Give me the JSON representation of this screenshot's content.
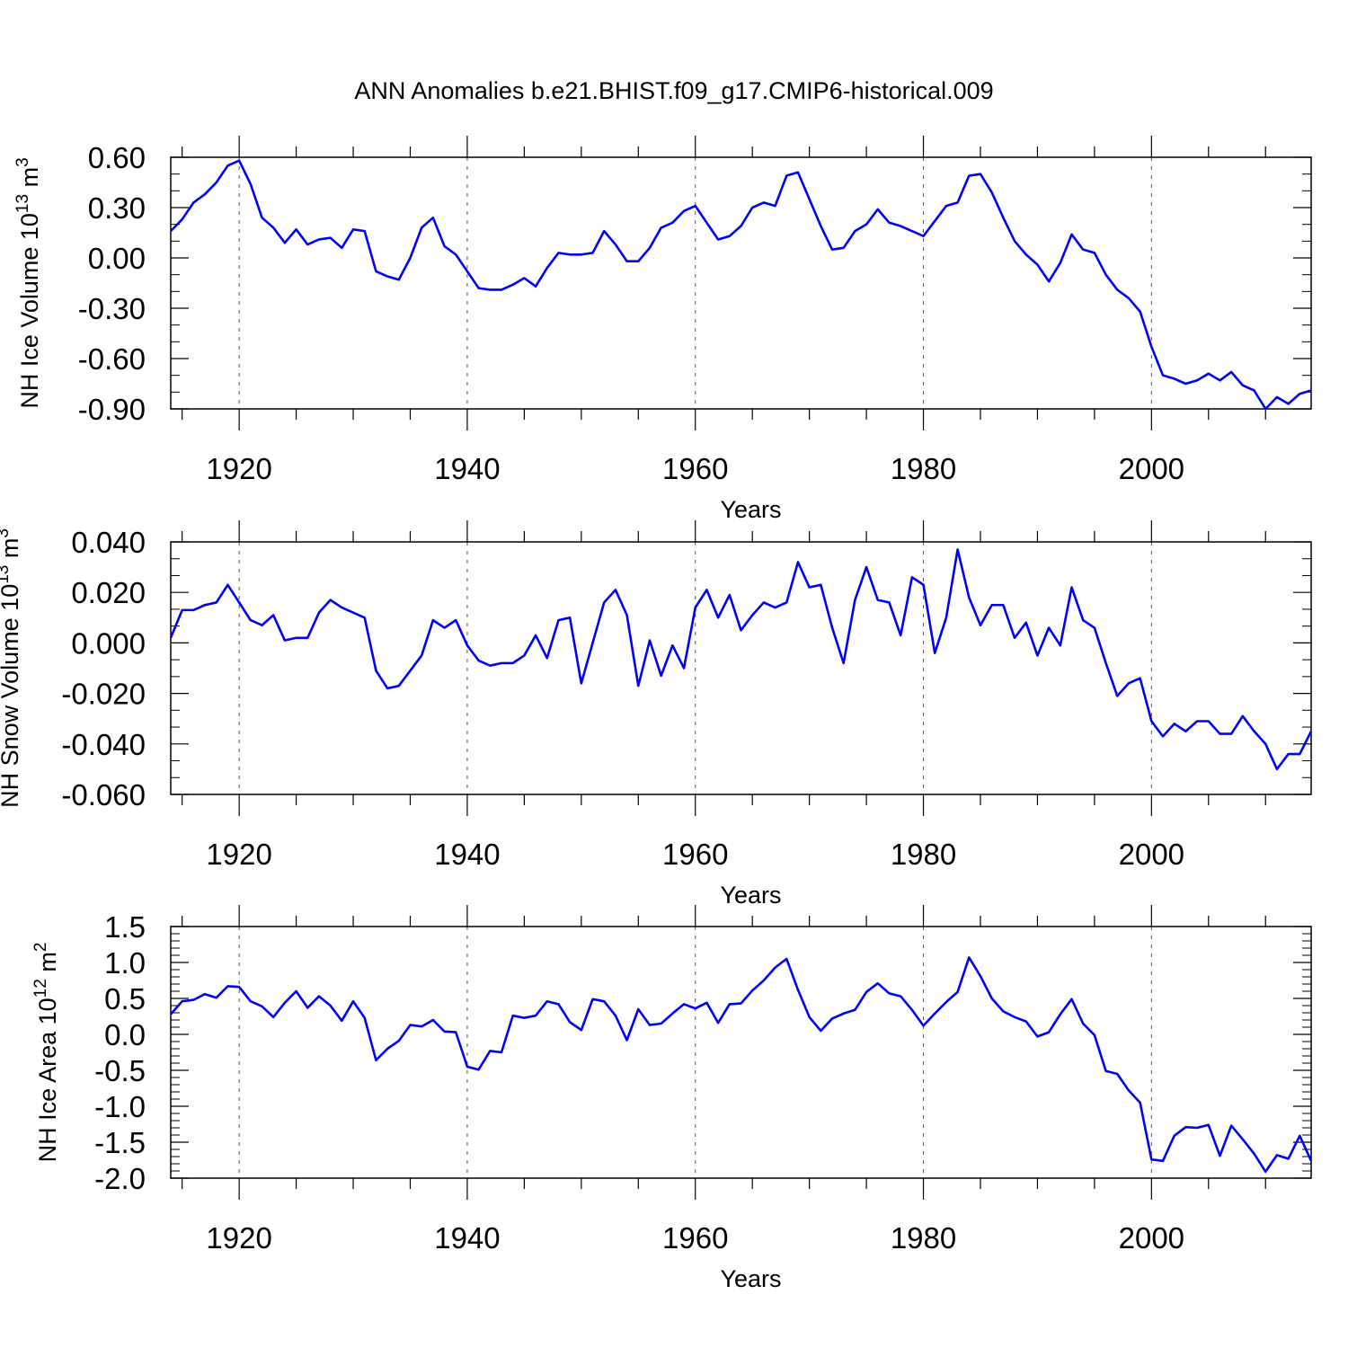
{
  "title": "ANN Anomalies b.e21.BHIST.f09_g17.CMIP6-historical.009",
  "colors": {
    "line": "#0000ff",
    "axis": "#000000",
    "grid": "#555555",
    "background": "#ffffff"
  },
  "chart_data": [
    {
      "type": "line",
      "ylabel_main": "NH Ice Volume 10",
      "ylabel_exp": "13",
      "ylabel_unit": " m",
      "ylabel_unit_exp": "3",
      "xlabel": "Years",
      "xlim": [
        1914,
        2014
      ],
      "ylim": [
        -0.9,
        0.6
      ],
      "yticks": [
        0.6,
        0.3,
        0.0,
        -0.3,
        -0.6,
        -0.9
      ],
      "ytick_labels": [
        "0.60",
        "0.30",
        "0.00",
        "-0.30",
        "-0.60",
        "-0.90"
      ],
      "xticks": [
        1920,
        1940,
        1960,
        1980,
        2000
      ],
      "xtick_labels": [
        "1920",
        "1940",
        "1960",
        "1980",
        "2000"
      ],
      "series": [
        {
          "name": "NH Ice Volume",
          "x_start": 1914,
          "values": [
            0.16,
            0.23,
            0.33,
            0.38,
            0.45,
            0.55,
            0.58,
            0.44,
            0.24,
            0.18,
            0.09,
            0.17,
            0.08,
            0.11,
            0.12,
            0.06,
            0.17,
            0.16,
            -0.08,
            -0.11,
            -0.13,
            0.0,
            0.18,
            0.24,
            0.07,
            0.02,
            -0.08,
            -0.18,
            -0.19,
            -0.19,
            -0.16,
            -0.12,
            -0.17,
            -0.06,
            0.03,
            0.02,
            0.02,
            0.03,
            0.16,
            0.08,
            -0.02,
            -0.02,
            0.06,
            0.18,
            0.21,
            0.28,
            0.31,
            0.21,
            0.11,
            0.13,
            0.19,
            0.3,
            0.33,
            0.31,
            0.49,
            0.51,
            0.35,
            0.19,
            0.05,
            0.06,
            0.16,
            0.2,
            0.29,
            0.21,
            0.19,
            0.16,
            0.13,
            0.22,
            0.31,
            0.33,
            0.49,
            0.5,
            0.39,
            0.24,
            0.1,
            0.02,
            -0.04,
            -0.14,
            -0.03,
            0.14,
            0.05,
            0.03,
            -0.1,
            -0.19,
            -0.24,
            -0.32,
            -0.53,
            -0.7,
            -0.72,
            -0.75,
            -0.73,
            -0.69,
            -0.73,
            -0.68,
            -0.76,
            -0.79,
            -0.9,
            -0.83,
            -0.87,
            -0.81,
            -0.79
          ]
        }
      ]
    },
    {
      "type": "line",
      "ylabel_main": "NH Snow Volume 10",
      "ylabel_exp": "13",
      "ylabel_unit": " m",
      "ylabel_unit_exp": "3",
      "xlabel": "Years",
      "xlim": [
        1914,
        2014
      ],
      "ylim": [
        -0.06,
        0.04
      ],
      "yticks": [
        0.04,
        0.02,
        0.0,
        -0.02,
        -0.04,
        -0.06
      ],
      "ytick_labels": [
        "0.040",
        "0.020",
        "0.000",
        "-0.020",
        "-0.040",
        "-0.060"
      ],
      "xticks": [
        1920,
        1940,
        1960,
        1980,
        2000
      ],
      "xtick_labels": [
        "1920",
        "1940",
        "1960",
        "1980",
        "2000"
      ],
      "series": [
        {
          "name": "NH Snow Volume",
          "x_start": 1914,
          "values": [
            0.002,
            0.013,
            0.013,
            0.015,
            0.016,
            0.023,
            0.016,
            0.009,
            0.007,
            0.011,
            0.001,
            0.002,
            0.002,
            0.012,
            0.017,
            0.014,
            0.012,
            0.01,
            -0.011,
            -0.018,
            -0.017,
            -0.011,
            -0.005,
            0.009,
            0.006,
            0.009,
            -0.001,
            -0.007,
            -0.009,
            -0.008,
            -0.008,
            -0.005,
            0.003,
            -0.006,
            0.009,
            0.01,
            -0.016,
            0.0,
            0.016,
            0.021,
            0.011,
            -0.017,
            0.001,
            -0.013,
            -0.001,
            -0.01,
            0.014,
            0.021,
            0.01,
            0.019,
            0.005,
            0.011,
            0.016,
            0.014,
            0.016,
            0.032,
            0.022,
            0.023,
            0.006,
            -0.008,
            0.017,
            0.03,
            0.017,
            0.016,
            0.003,
            0.026,
            0.023,
            -0.004,
            0.01,
            0.037,
            0.018,
            0.007,
            0.015,
            0.015,
            0.002,
            0.008,
            -0.005,
            0.006,
            -0.001,
            0.022,
            0.009,
            0.006,
            -0.008,
            -0.021,
            -0.016,
            -0.014,
            -0.031,
            -0.037,
            -0.032,
            -0.035,
            -0.031,
            -0.031,
            -0.036,
            -0.036,
            -0.029,
            -0.035,
            -0.04,
            -0.05,
            -0.044,
            -0.044,
            -0.035
          ]
        }
      ]
    },
    {
      "type": "line",
      "ylabel_main": "NH Ice Area 10",
      "ylabel_exp": "12",
      "ylabel_unit": " m",
      "ylabel_unit_exp": "2",
      "xlabel": "Years",
      "xlim": [
        1914,
        2014
      ],
      "ylim": [
        -2.0,
        1.5
      ],
      "yticks": [
        1.5,
        1.0,
        0.5,
        0.0,
        -0.5,
        -1.0,
        -1.5,
        -2.0
      ],
      "ytick_labels": [
        "1.5",
        "1.0",
        "0.5",
        "0.0",
        "-0.5",
        "-1.0",
        "-1.5",
        "-2.0"
      ],
      "xticks": [
        1920,
        1940,
        1960,
        1980,
        2000
      ],
      "xtick_labels": [
        "1920",
        "1940",
        "1960",
        "1980",
        "2000"
      ],
      "series": [
        {
          "name": "NH Ice Area",
          "x_start": 1914,
          "values": [
            0.28,
            0.46,
            0.48,
            0.56,
            0.51,
            0.67,
            0.66,
            0.46,
            0.39,
            0.24,
            0.44,
            0.6,
            0.37,
            0.53,
            0.4,
            0.19,
            0.46,
            0.23,
            -0.36,
            -0.2,
            -0.09,
            0.13,
            0.11,
            0.2,
            0.04,
            0.03,
            -0.45,
            -0.49,
            -0.23,
            -0.25,
            0.26,
            0.23,
            0.26,
            0.46,
            0.42,
            0.17,
            0.06,
            0.49,
            0.46,
            0.26,
            -0.08,
            0.35,
            0.13,
            0.15,
            0.29,
            0.42,
            0.36,
            0.44,
            0.16,
            0.42,
            0.43,
            0.61,
            0.75,
            0.93,
            1.05,
            0.62,
            0.24,
            0.05,
            0.22,
            0.29,
            0.34,
            0.59,
            0.71,
            0.57,
            0.53,
            0.34,
            0.12,
            0.29,
            0.45,
            0.59,
            1.07,
            0.81,
            0.5,
            0.32,
            0.24,
            0.18,
            -0.03,
            0.03,
            0.28,
            0.49,
            0.15,
            -0.01,
            -0.51,
            -0.55,
            -0.78,
            -0.95,
            -1.74,
            -1.76,
            -1.41,
            -1.29,
            -1.3,
            -1.26,
            -1.69,
            -1.27,
            -1.46,
            -1.66,
            -1.91,
            -1.68,
            -1.73,
            -1.41,
            -1.76
          ]
        }
      ]
    }
  ]
}
